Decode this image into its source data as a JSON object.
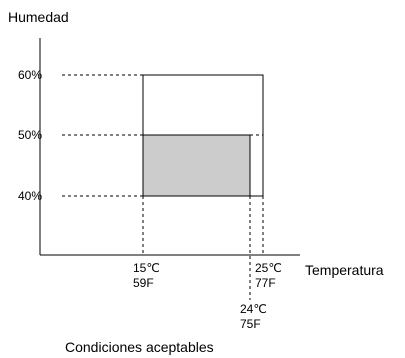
{
  "diagram": {
    "y_axis_title": "Humedad",
    "x_axis_title": "Temperatura",
    "caption": "Condiciones aceptables",
    "y_ticks": [
      "60%",
      "50%",
      "40%"
    ],
    "x_ticks": {
      "t15": {
        "c": "15℃",
        "f": "59F"
      },
      "t25": {
        "c": "25℃",
        "f": "77F"
      },
      "t24": {
        "c": "24℃",
        "f": "75F"
      }
    },
    "colors": {
      "line": "#000000",
      "shaded_fill": "#cccccc",
      "background": "#ffffff"
    }
  }
}
